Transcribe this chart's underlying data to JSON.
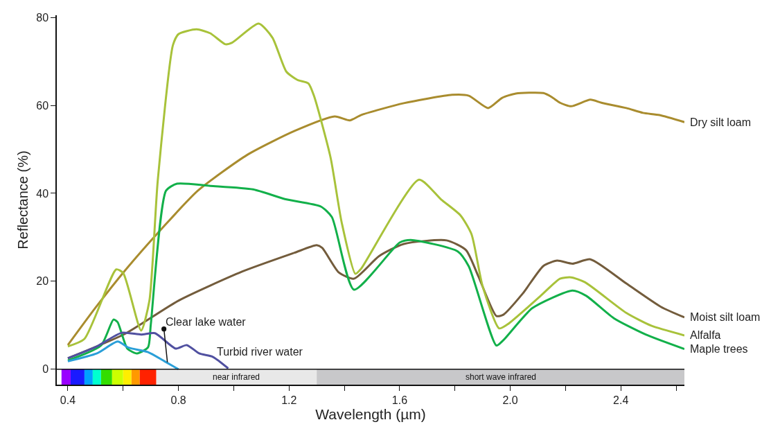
{
  "chart_data": {
    "type": "line",
    "xlabel": "Wavelength (µm)",
    "ylabel": "Reflectance (%)",
    "xlim": [
      0.36,
      2.63
    ],
    "ylim": [
      -3.5,
      80.5
    ],
    "xticks": [
      {
        "value": 0.4,
        "label": "0.4"
      },
      {
        "value": 0.6,
        "label": null
      },
      {
        "value": 0.8,
        "label": "0.8"
      },
      {
        "value": 1.0,
        "label": null
      },
      {
        "value": 1.2,
        "label": "1.2"
      },
      {
        "value": 1.4,
        "label": null
      },
      {
        "value": 1.6,
        "label": "1.6"
      },
      {
        "value": 1.8,
        "label": null
      },
      {
        "value": 2.0,
        "label": "2.0"
      },
      {
        "value": 2.2,
        "label": null
      },
      {
        "value": 2.4,
        "label": "2.4"
      },
      {
        "value": 2.6,
        "label": null
      }
    ],
    "ref_lines": [
      {
        "axis": "y",
        "value": 0,
        "color": "#111111"
      }
    ],
    "yticks": [
      0,
      20,
      40,
      60,
      80
    ],
    "grid": false,
    "legend": false,
    "marker": "none",
    "line_style": "solid",
    "series": [
      {
        "name": "Dry silt loam",
        "color": "#a98c2e",
        "x": [
          0.4,
          0.5,
          0.61,
          0.74,
          0.87,
          1.05,
          1.22,
          1.365,
          1.42,
          1.46,
          1.615,
          1.79,
          1.85,
          1.92,
          1.97,
          2.02,
          2.12,
          2.15,
          2.18,
          2.22,
          2.29,
          2.33,
          2.42,
          2.48,
          2.54,
          2.63
        ],
        "values": [
          5.5,
          14,
          22.7,
          32,
          40.6,
          48.8,
          54.2,
          57.5,
          56.6,
          57.8,
          60.5,
          62.4,
          62.2,
          59.4,
          61.7,
          62.7,
          62.8,
          61.9,
          60.6,
          59.8,
          61.3,
          60.6,
          59.4,
          58.3,
          57.8,
          56.2
        ]
      },
      {
        "name": "Moist silt loam",
        "color": "#735c3c",
        "x": [
          0.4,
          0.605,
          0.8,
          1.03,
          1.22,
          1.3,
          1.32,
          1.38,
          1.435,
          1.525,
          1.615,
          1.77,
          1.84,
          1.885,
          1.95,
          1.975,
          2.045,
          2.12,
          2.17,
          2.225,
          2.29,
          2.42,
          2.545,
          2.63
        ],
        "values": [
          2.5,
          8.0,
          15.6,
          22.2,
          26.5,
          28.2,
          27.6,
          22,
          20.6,
          25.7,
          28.5,
          29.3,
          27.1,
          21.1,
          12.1,
          12.4,
          17.2,
          23.5,
          24.7,
          24.0,
          25.0,
          19.5,
          14.2,
          11.8
        ]
      },
      {
        "name": "Alfalfa",
        "color": "#a8c23a",
        "x": [
          0.4,
          0.46,
          0.575,
          0.6,
          0.665,
          0.695,
          0.725,
          0.78,
          0.8,
          0.865,
          0.915,
          0.97,
          0.995,
          1.09,
          1.14,
          1.19,
          1.23,
          1.27,
          1.29,
          1.35,
          1.39,
          1.44,
          1.46,
          1.67,
          1.75,
          1.82,
          1.86,
          1.9,
          1.96,
          1.99,
          2.11,
          2.18,
          2.22,
          2.27,
          2.42,
          2.51,
          2.63
        ],
        "values": [
          5.2,
          6.9,
          22.7,
          21.9,
          8.8,
          15.6,
          42.8,
          73.7,
          76.2,
          77.3,
          76.4,
          73.9,
          74.3,
          78.6,
          75.4,
          67.7,
          65.8,
          65,
          62.2,
          48.2,
          33.5,
          21.7,
          22.8,
          43.1,
          38.6,
          35,
          30.7,
          18.9,
          9.3,
          10.2,
          16.7,
          20.6,
          20.9,
          19.8,
          12.8,
          9.9,
          7.7
        ]
      },
      {
        "name": "Maple trees",
        "color": "#12b04a",
        "x": [
          0.4,
          0.52,
          0.565,
          0.58,
          0.615,
          0.65,
          0.69,
          0.7,
          0.755,
          0.795,
          0.915,
          1.07,
          1.185,
          1.315,
          1.355,
          1.435,
          1.6,
          1.64,
          1.81,
          1.85,
          1.95,
          1.975,
          2.08,
          2.225,
          2.275,
          2.375,
          2.49,
          2.63
        ],
        "values": [
          2.0,
          5.4,
          11.3,
          10.7,
          4.7,
          3.6,
          5.0,
          10.2,
          40.6,
          42.2,
          41.7,
          40.9,
          38.7,
          37,
          34.6,
          18.1,
          28.8,
          29.4,
          26.8,
          23.4,
          5.4,
          6.6,
          13.9,
          17.9,
          16.7,
          11.6,
          7.9,
          4.6
        ]
      },
      {
        "color": "#2a9fd8",
        "x": [
          0.4,
          0.505,
          0.58,
          0.62,
          0.69,
          0.75,
          0.8
        ],
        "values": [
          1.8,
          3.6,
          6.3,
          4.9,
          3.9,
          1.8,
          0
        ]
      },
      {
        "name": "Turbid river water",
        "color": "#5050a0",
        "x": [
          0.4,
          0.505,
          0.595,
          0.665,
          0.715,
          0.79,
          0.83,
          0.875,
          0.925,
          0.98
        ],
        "values": [
          2.5,
          5.2,
          8.3,
          7.9,
          8.2,
          4.7,
          5.5,
          3.6,
          2.8,
          0.2
        ]
      }
    ],
    "annotations": [
      {
        "text": "Clear lake water",
        "x": 0.76,
        "y": 1.6
      }
    ],
    "bands": [
      {
        "axis": "x",
        "from": 0.377,
        "to": 0.41,
        "color": "#9900ff"
      },
      {
        "axis": "x",
        "from": 0.41,
        "to": 0.46,
        "color": "#1a1aff"
      },
      {
        "axis": "x",
        "from": 0.46,
        "to": 0.49,
        "color": "#00a0ff"
      },
      {
        "axis": "x",
        "from": 0.49,
        "to": 0.52,
        "color": "#00ffd0"
      },
      {
        "axis": "x",
        "from": 0.52,
        "to": 0.56,
        "color": "#33dd00"
      },
      {
        "axis": "x",
        "from": 0.56,
        "to": 0.6,
        "color": "#ccff00"
      },
      {
        "axis": "x",
        "from": 0.6,
        "to": 0.63,
        "color": "#ffee00"
      },
      {
        "axis": "x",
        "from": 0.63,
        "to": 0.66,
        "color": "#ff9900"
      },
      {
        "axis": "x",
        "from": 0.66,
        "to": 0.72,
        "color": "#ff2200"
      },
      {
        "axis": "x",
        "from": 0.72,
        "to": 1.3,
        "label": "near infrared",
        "color": "#e8e8e8"
      },
      {
        "axis": "x",
        "from": 1.3,
        "to": 2.63,
        "label": "short wave infrared",
        "color": "#c8c8ca"
      }
    ]
  }
}
